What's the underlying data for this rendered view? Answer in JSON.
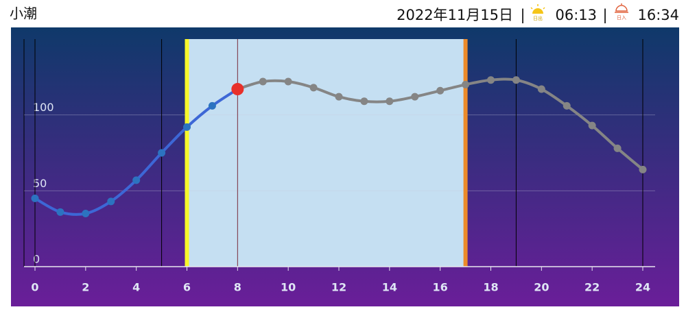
{
  "header": {
    "title": "小潮",
    "date": "2022年11月15日",
    "separator": "|",
    "sunrise_icon": "日出",
    "sunrise": "06:13",
    "sunset_icon": "日入",
    "sunset": "16:34"
  },
  "chart_data": {
    "type": "line",
    "x": [
      0,
      1,
      2,
      3,
      4,
      5,
      6,
      7,
      8,
      9,
      10,
      11,
      12,
      13,
      14,
      15,
      16,
      17,
      18,
      19,
      20,
      21,
      22,
      23,
      24
    ],
    "values": [
      45,
      36,
      35,
      43,
      57,
      75,
      92,
      106,
      117,
      122,
      122,
      118,
      112,
      109,
      109,
      112,
      116,
      120,
      123,
      123,
      117,
      106,
      93,
      78,
      64
    ],
    "past_color": "#3d67d6",
    "future_color": "#858585",
    "current_color": "#e8302a",
    "current_x": 8,
    "shaded_range": [
      6,
      17
    ],
    "shaded_color": "#c5dff2",
    "sunrise_color": "#f7f72a",
    "sunset_color": "#ec8a2a",
    "vlines": [
      0,
      5,
      19,
      24
    ],
    "xlim": [
      0,
      24
    ],
    "xticks": [
      0,
      2,
      4,
      6,
      8,
      10,
      12,
      14,
      16,
      18,
      20,
      22,
      24
    ],
    "ylim": [
      0,
      150
    ],
    "yticks": [
      0,
      50,
      100
    ],
    "grid": true
  }
}
